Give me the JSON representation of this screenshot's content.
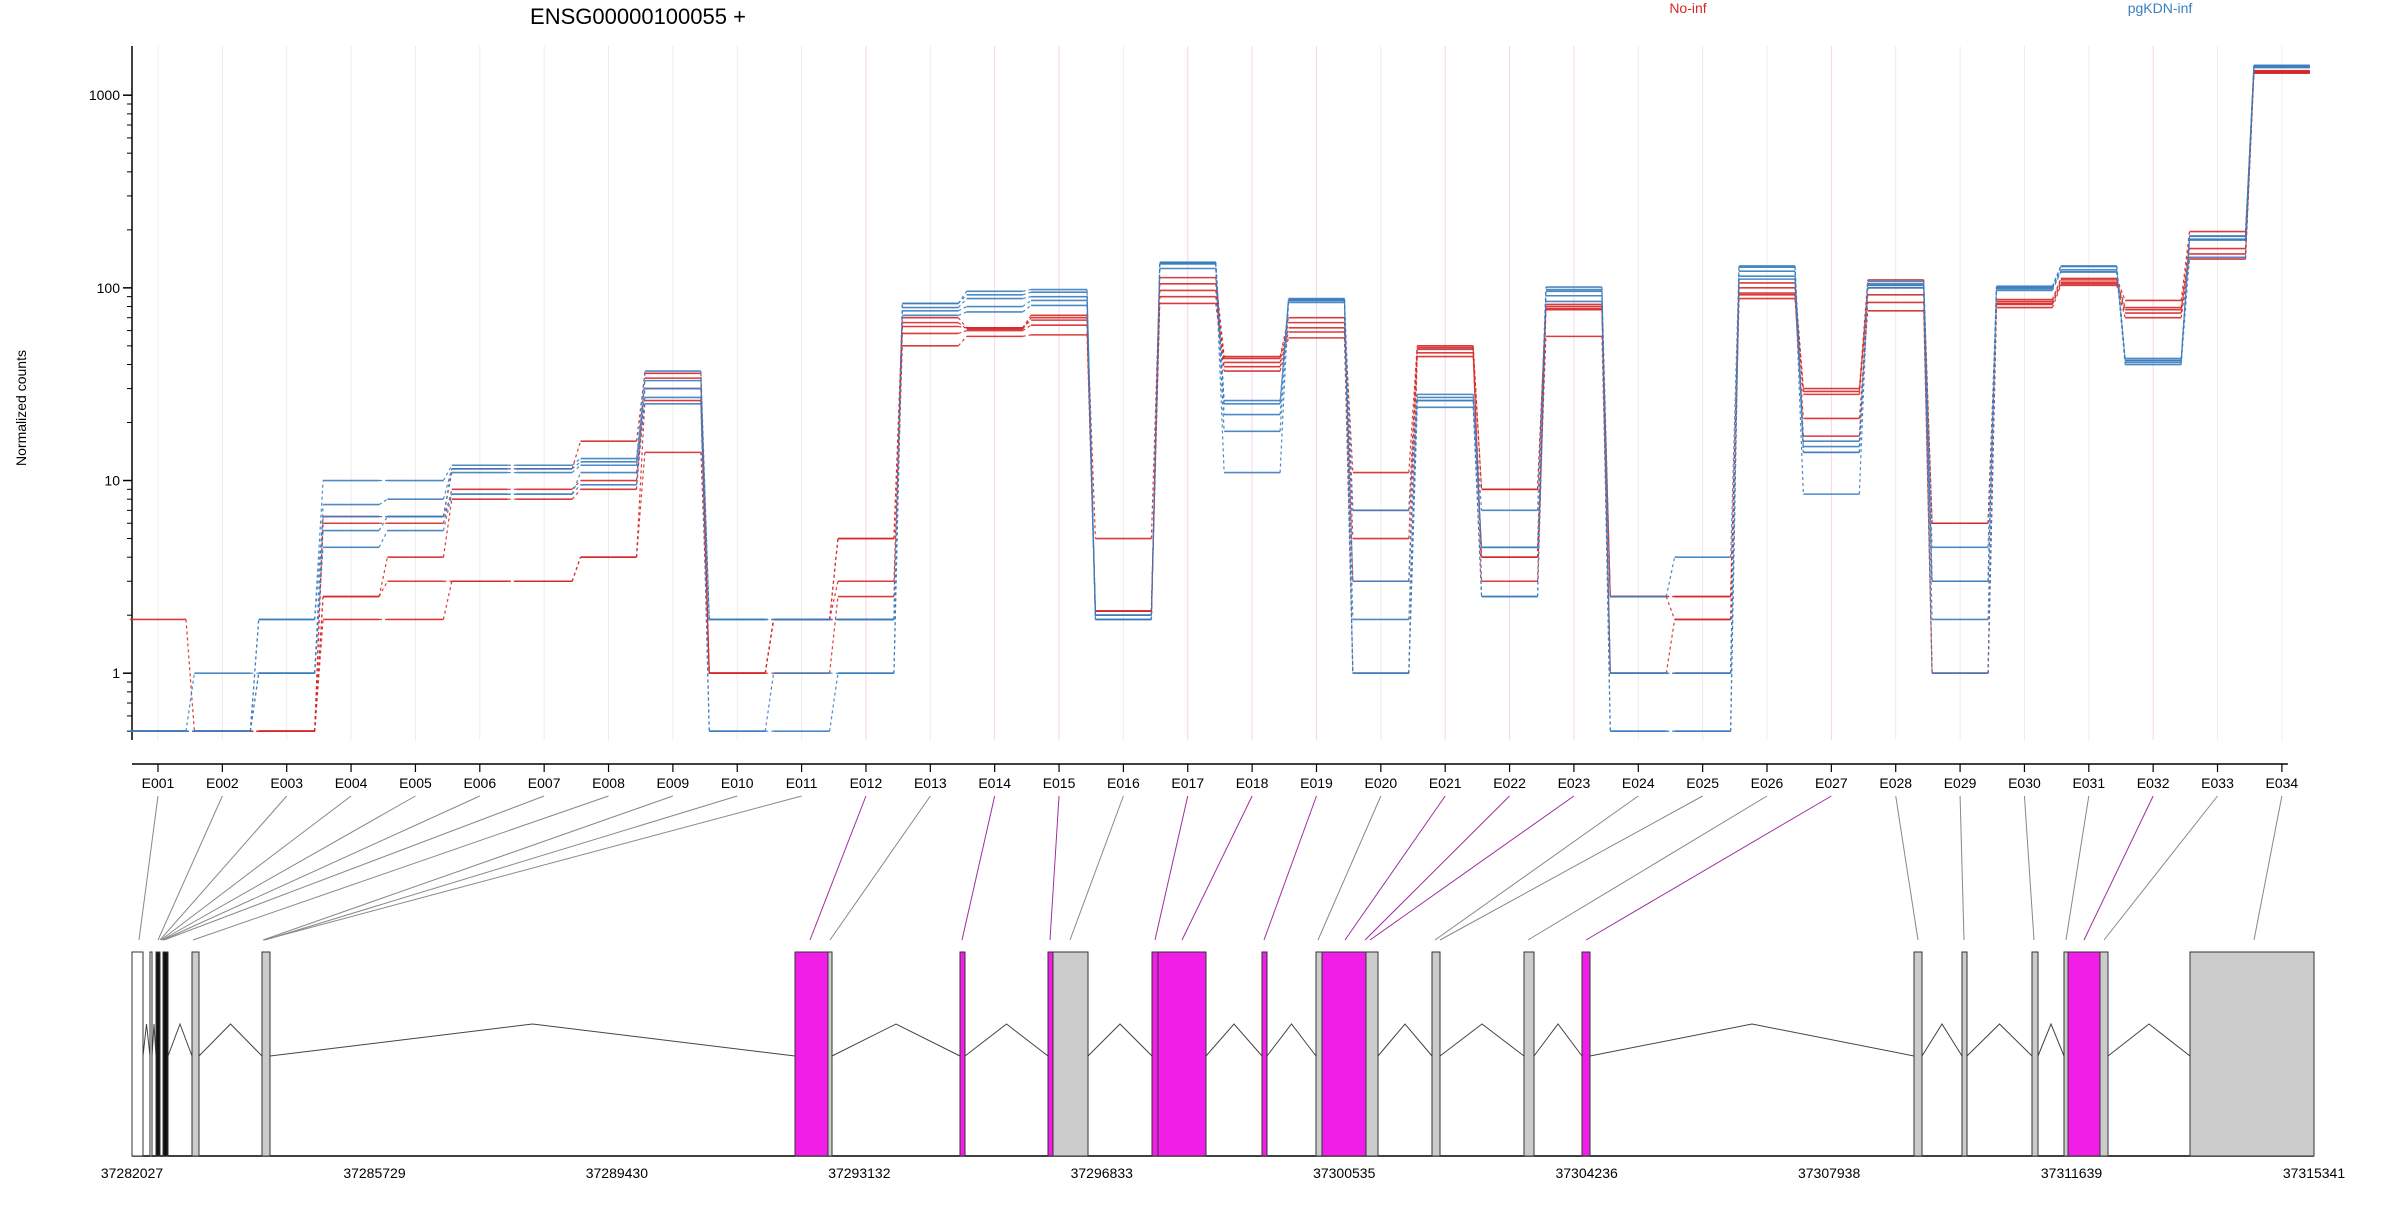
{
  "chart_data": {
    "type": "line",
    "title": "ENSG00000100055 +",
    "ylabel": "Normalized counts",
    "yscale": "log",
    "ylim": [
      0.45,
      1800
    ],
    "yticks": [
      1,
      10,
      100,
      1000
    ],
    "ytick_labels": [
      "1",
      "10",
      "100",
      "1000"
    ],
    "grid": true,
    "legend_placement": "top",
    "categories": [
      "E001",
      "E002",
      "E003",
      "E004",
      "E005",
      "E006",
      "E007",
      "E008",
      "E009",
      "E010",
      "E011",
      "E012",
      "E013",
      "E014",
      "E015",
      "E016",
      "E017",
      "E018",
      "E019",
      "E020",
      "E021",
      "E022",
      "E023",
      "E024",
      "E025",
      "E026",
      "E027",
      "E028",
      "E029",
      "E030",
      "E031",
      "E032",
      "E033",
      "E034"
    ],
    "groups": [
      {
        "name": "No-inf",
        "color": "#d62728"
      },
      {
        "name": "pgKDN-inf",
        "color": "#3a7ebf"
      }
    ],
    "series": [
      {
        "group": "No-inf",
        "values": [
          1.9,
          0.5,
          0.5,
          2.5,
          3.0,
          3.0,
          3.0,
          4.0,
          14,
          1.0,
          1.0,
          2.5,
          50,
          56,
          57,
          2.0,
          83,
          37,
          55,
          1.0,
          44,
          4.0,
          56,
          1.0,
          1.9,
          88,
          21,
          76,
          1.0,
          79,
          103,
          70,
          141,
          1300
        ]
      },
      {
        "group": "No-inf",
        "values": [
          0.5,
          0.5,
          0.5,
          1.9,
          1.9,
          3.0,
          3.0,
          4.0,
          26,
          1.0,
          1.9,
          1.9,
          58,
          60,
          64,
          2.1,
          90,
          39,
          59,
          3.0,
          46,
          4.0,
          77,
          1.0,
          1.0,
          92,
          17,
          84,
          1.0,
          82,
          105,
          74,
          150,
          1310
        ]
      },
      {
        "group": "No-inf",
        "values": [
          0.5,
          0.5,
          0.5,
          2.5,
          4.0,
          8.0,
          8.0,
          9.0,
          30,
          1.0,
          1.9,
          3.0,
          63,
          62,
          68,
          2.1,
          97,
          41,
          62,
          5.0,
          48,
          3.0,
          78,
          2.5,
          1.9,
          94,
          28,
          92,
          3.0,
          83,
          107,
          77,
          160,
          1320
        ]
      },
      {
        "group": "No-inf",
        "values": [
          0.5,
          0.5,
          0.5,
          6.0,
          6.0,
          9.0,
          9.0,
          10.0,
          34,
          1.0,
          1.9,
          5.0,
          66,
          61,
          70,
          2.1,
          105,
          43,
          66,
          7.0,
          49,
          9.0,
          80,
          2.5,
          2.5,
          100,
          29,
          100,
          6.0,
          85,
          110,
          79,
          178,
          1330
        ]
      },
      {
        "group": "No-inf",
        "values": [
          0.5,
          0.5,
          0.5,
          6.5,
          6.5,
          11.5,
          11.5,
          16,
          36,
          1.0,
          1.9,
          5.0,
          70,
          62,
          72,
          5.0,
          113,
          44,
          70,
          11,
          50,
          9.0,
          82,
          2.5,
          2.5,
          106,
          30,
          110,
          6.0,
          87,
          112,
          86,
          196,
          1340
        ]
      },
      {
        "group": "pgKDN-inf",
        "values": [
          0.5,
          1.0,
          1.0,
          4.5,
          5.5,
          8.5,
          8.5,
          9.5,
          27,
          0.5,
          0.5,
          1.0,
          72,
          75,
          81,
          1.9,
          126,
          11,
          84,
          1.0,
          24,
          2.5,
          85,
          0.5,
          0.5,
          111,
          8.5,
          100,
          1.9,
          97,
          121,
          40,
          144,
          1390
        ]
      },
      {
        "group": "pgKDN-inf",
        "values": [
          0.5,
          0.5,
          1.0,
          5.5,
          6.5,
          8.5,
          8.5,
          11,
          25,
          0.5,
          1.0,
          1.0,
          76,
          80,
          86,
          1.9,
          133,
          18,
          86,
          1.0,
          26,
          2.5,
          91,
          0.5,
          0.5,
          115,
          14,
          103,
          1.0,
          99,
          121,
          41,
          177,
          1400
        ]
      },
      {
        "group": "pgKDN-inf",
        "values": [
          0.5,
          0.5,
          1.9,
          6.5,
          6.5,
          11,
          11,
          12,
          30,
          1.9,
          1.9,
          1.9,
          79,
          88,
          90,
          1.9,
          134,
          22,
          86,
          1.9,
          26,
          4.5,
          96,
          1.0,
          1.0,
          122,
          14,
          103,
          3.0,
          100,
          124,
          42,
          179,
          1410
        ]
      },
      {
        "group": "pgKDN-inf",
        "values": [
          0.5,
          0.5,
          1.0,
          7.5,
          8.0,
          11.5,
          11.5,
          12.5,
          33,
          1.9,
          1.9,
          1.9,
          83,
          92,
          95,
          2.0,
          135,
          25,
          87,
          3.0,
          27,
          4.5,
          98,
          1.0,
          1.0,
          128,
          15,
          105,
          3.0,
          101,
          129,
          42,
          185,
          1420
        ]
      },
      {
        "group": "pgKDN-inf",
        "values": [
          0.5,
          0.5,
          1.9,
          10.0,
          10.0,
          12,
          12,
          13,
          37,
          1.9,
          1.9,
          1.9,
          83,
          96,
          98,
          2.0,
          136,
          26,
          88,
          7.0,
          28,
          7.0,
          101,
          2.5,
          4.0,
          130,
          16,
          108,
          4.5,
          102,
          130,
          43,
          186,
          1430
        ]
      }
    ],
    "exon_highlight": [
      "gray",
      "gray",
      "gray",
      "gray",
      "gray",
      "gray",
      "gray",
      "gray",
      "gray",
      "gray",
      "gray",
      "magenta",
      "gray",
      "magenta",
      "magenta",
      "gray",
      "magenta",
      "magenta",
      "magenta",
      "gray",
      "magenta",
      "magenta",
      "magenta",
      "gray",
      "gray",
      "gray",
      "magenta",
      "gray",
      "gray",
      "gray",
      "gray",
      "magenta",
      "gray",
      "gray"
    ],
    "genomic_axis_labels": [
      "37282027",
      "37285729",
      "37289430",
      "37293132",
      "37296833",
      "37300535",
      "37304236",
      "37307938",
      "37311639",
      "37315341"
    ],
    "gene_start": 37282027,
    "gene_end": 37315341
  },
  "colors": {
    "magenta": "#f01ee6",
    "gray": "#cccccc",
    "gray_line": "#888888",
    "magenta_line": "#a02ea0"
  }
}
